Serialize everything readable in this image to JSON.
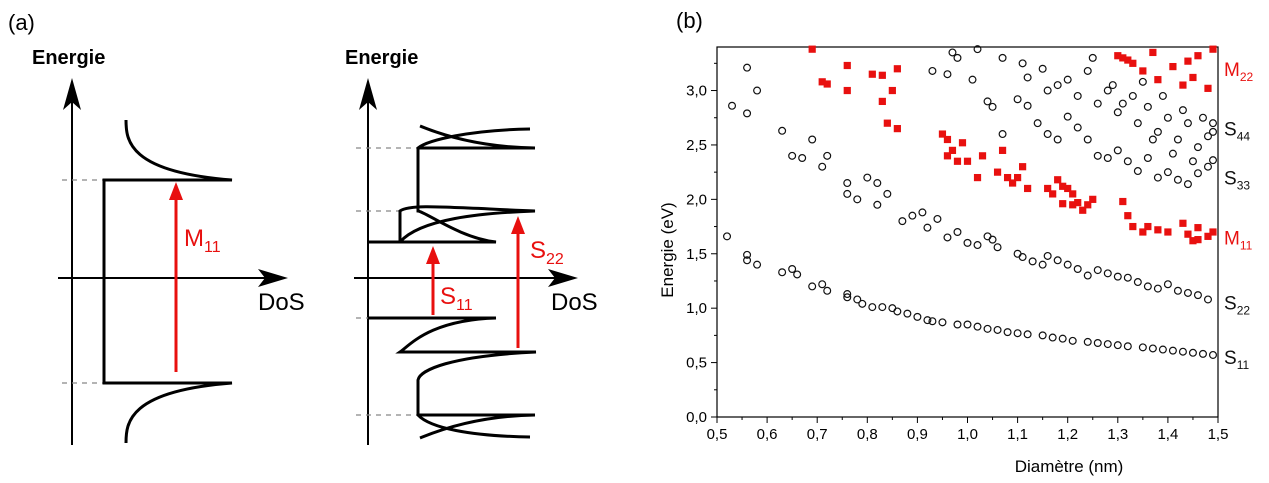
{
  "panel_a": {
    "label": "(a)",
    "metal": {
      "energy_axis_label": "Energie",
      "dos_axis_label": "DoS",
      "transition": {
        "main": "M",
        "sub": "11"
      }
    },
    "semiconductor": {
      "energy_axis_label": "Energie",
      "dos_axis_label": "DoS",
      "transitions": [
        {
          "main": "S",
          "sub": "11"
        },
        {
          "main": "S",
          "sub": "22"
        }
      ]
    }
  },
  "panel_b": {
    "label": "(b)"
  },
  "colors": {
    "transition": "#e8100f",
    "semiconducting": "#111111",
    "metallic": "#e8100f",
    "axis": "#000000"
  },
  "chart_data": {
    "type": "scatter",
    "title": "",
    "xlabel": "Diamètre (nm)",
    "ylabel": "Energie (eV)",
    "xlim": [
      0.5,
      1.5
    ],
    "ylim": [
      0.0,
      3.4
    ],
    "x_ticks": [
      "0,5",
      "0,6",
      "0,7",
      "0,8",
      "0,9",
      "1,0",
      "1,1",
      "1,2",
      "1,3",
      "1,4",
      "1,5"
    ],
    "y_ticks": [
      "0,0",
      "0,5",
      "1,0",
      "1,5",
      "2,0",
      "2,5",
      "3,0"
    ],
    "x_tick_values": [
      0.5,
      0.6,
      0.7,
      0.8,
      0.9,
      1.0,
      1.1,
      1.2,
      1.3,
      1.4,
      1.5
    ],
    "y_tick_values": [
      0,
      0.5,
      1.0,
      1.5,
      2.0,
      2.5,
      3.0
    ],
    "grid": false,
    "band_labels": [
      {
        "main": "M",
        "sub": "22",
        "y": 3.2,
        "color": "metallic"
      },
      {
        "main": "S",
        "sub": "44",
        "y": 2.65,
        "color": "semiconducting"
      },
      {
        "main": "S",
        "sub": "33",
        "y": 2.2,
        "color": "semiconducting"
      },
      {
        "main": "M",
        "sub": "11",
        "y": 1.65,
        "color": "metallic"
      },
      {
        "main": "S",
        "sub": "22",
        "y": 1.05,
        "color": "semiconducting"
      },
      {
        "main": "S",
        "sub": "11",
        "y": 0.55,
        "color": "semiconducting"
      }
    ],
    "series": [
      {
        "marker": "open-circle",
        "color": "semiconducting",
        "points": [
          [
            0.52,
            1.66
          ],
          [
            0.56,
            1.49
          ],
          [
            0.56,
            1.44
          ],
          [
            0.58,
            1.4
          ],
          [
            0.63,
            1.33
          ],
          [
            0.65,
            1.36
          ],
          [
            0.66,
            1.31
          ],
          [
            0.69,
            1.2
          ],
          [
            0.71,
            1.22
          ],
          [
            0.72,
            1.16
          ],
          [
            0.76,
            1.13
          ],
          [
            0.76,
            1.1
          ],
          [
            0.78,
            1.08
          ],
          [
            0.79,
            1.04
          ],
          [
            0.81,
            1.01
          ],
          [
            0.83,
            1.01
          ],
          [
            0.85,
            1.0
          ],
          [
            0.86,
            0.97
          ],
          [
            0.88,
            0.95
          ],
          [
            0.9,
            0.92
          ],
          [
            0.92,
            0.89
          ],
          [
            0.93,
            0.88
          ],
          [
            0.95,
            0.87
          ],
          [
            0.98,
            0.85
          ],
          [
            1.0,
            0.85
          ],
          [
            1.02,
            0.83
          ],
          [
            1.04,
            0.81
          ],
          [
            1.06,
            0.8
          ],
          [
            1.08,
            0.78
          ],
          [
            1.1,
            0.77
          ],
          [
            1.12,
            0.76
          ],
          [
            1.15,
            0.75
          ],
          [
            1.17,
            0.73
          ],
          [
            1.19,
            0.72
          ],
          [
            1.21,
            0.7
          ],
          [
            1.24,
            0.69
          ],
          [
            1.26,
            0.68
          ],
          [
            1.28,
            0.67
          ],
          [
            1.3,
            0.66
          ],
          [
            1.32,
            0.65
          ],
          [
            1.35,
            0.64
          ],
          [
            1.37,
            0.63
          ],
          [
            1.39,
            0.62
          ],
          [
            1.41,
            0.61
          ],
          [
            1.43,
            0.6
          ],
          [
            1.45,
            0.59
          ],
          [
            1.47,
            0.58
          ],
          [
            1.49,
            0.57
          ],
          [
            0.53,
            2.86
          ],
          [
            0.56,
            2.79
          ],
          [
            0.58,
            3.0
          ],
          [
            0.56,
            3.21
          ],
          [
            0.63,
            2.63
          ],
          [
            0.65,
            2.4
          ],
          [
            0.67,
            2.38
          ],
          [
            0.69,
            2.55
          ],
          [
            0.71,
            2.3
          ],
          [
            0.72,
            2.4
          ],
          [
            0.76,
            2.15
          ],
          [
            0.76,
            2.05
          ],
          [
            0.78,
            2.0
          ],
          [
            0.8,
            2.2
          ],
          [
            0.82,
            2.15
          ],
          [
            0.82,
            1.95
          ],
          [
            0.84,
            2.05
          ],
          [
            0.87,
            1.8
          ],
          [
            0.89,
            1.85
          ],
          [
            0.91,
            1.88
          ],
          [
            0.92,
            1.74
          ],
          [
            0.94,
            1.82
          ],
          [
            0.96,
            1.65
          ],
          [
            0.98,
            1.7
          ],
          [
            1.0,
            1.6
          ],
          [
            1.02,
            1.58
          ],
          [
            1.04,
            1.66
          ],
          [
            1.05,
            1.63
          ],
          [
            1.06,
            1.56
          ],
          [
            1.1,
            1.5
          ],
          [
            1.11,
            1.47
          ],
          [
            1.13,
            1.43
          ],
          [
            1.15,
            1.4
          ],
          [
            1.16,
            1.48
          ],
          [
            1.18,
            1.44
          ],
          [
            1.2,
            1.4
          ],
          [
            1.22,
            1.36
          ],
          [
            1.24,
            1.3
          ],
          [
            1.26,
            1.35
          ],
          [
            1.28,
            1.32
          ],
          [
            1.3,
            1.29
          ],
          [
            1.32,
            1.28
          ],
          [
            1.34,
            1.24
          ],
          [
            1.36,
            1.2
          ],
          [
            1.38,
            1.18
          ],
          [
            1.4,
            1.22
          ],
          [
            1.42,
            1.16
          ],
          [
            1.44,
            1.14
          ],
          [
            1.46,
            1.12
          ],
          [
            1.48,
            1.08
          ],
          [
            0.93,
            3.18
          ],
          [
            0.96,
            3.15
          ],
          [
            0.98,
            3.3
          ],
          [
            1.01,
            3.1
          ],
          [
            1.04,
            2.9
          ],
          [
            1.05,
            2.85
          ],
          [
            1.07,
            2.6
          ],
          [
            1.1,
            2.92
          ],
          [
            1.12,
            2.86
          ],
          [
            1.14,
            2.7
          ],
          [
            1.16,
            2.6
          ],
          [
            1.18,
            2.55
          ],
          [
            1.2,
            2.76
          ],
          [
            1.22,
            2.66
          ],
          [
            1.24,
            2.55
          ],
          [
            1.26,
            2.4
          ],
          [
            1.28,
            2.38
          ],
          [
            1.3,
            2.45
          ],
          [
            1.32,
            2.35
          ],
          [
            1.34,
            2.26
          ],
          [
            1.36,
            2.38
          ],
          [
            1.38,
            2.2
          ],
          [
            1.4,
            2.25
          ],
          [
            1.42,
            2.18
          ],
          [
            1.44,
            2.14
          ],
          [
            1.46,
            2.24
          ],
          [
            1.48,
            2.3
          ],
          [
            1.49,
            2.36
          ],
          [
            0.97,
            3.35
          ],
          [
            1.02,
            3.38
          ],
          [
            1.07,
            3.3
          ],
          [
            1.11,
            3.25
          ],
          [
            1.15,
            3.2
          ],
          [
            1.18,
            3.05
          ],
          [
            1.2,
            3.1
          ],
          [
            1.22,
            2.95
          ],
          [
            1.24,
            3.18
          ],
          [
            1.26,
            2.88
          ],
          [
            1.28,
            3.0
          ],
          [
            1.3,
            2.8
          ],
          [
            1.33,
            2.95
          ],
          [
            1.34,
            2.7
          ],
          [
            1.36,
            2.85
          ],
          [
            1.38,
            2.62
          ],
          [
            1.4,
            2.75
          ],
          [
            1.42,
            2.55
          ],
          [
            1.44,
            2.7
          ],
          [
            1.46,
            2.48
          ],
          [
            1.48,
            2.58
          ],
          [
            1.49,
            2.62
          ],
          [
            1.12,
            3.12
          ],
          [
            1.16,
            3.0
          ],
          [
            1.25,
            3.3
          ],
          [
            1.29,
            3.05
          ],
          [
            1.31,
            2.88
          ],
          [
            1.35,
            3.08
          ],
          [
            1.37,
            2.55
          ],
          [
            1.39,
            2.95
          ],
          [
            1.41,
            2.42
          ],
          [
            1.43,
            2.82
          ],
          [
            1.45,
            2.35
          ],
          [
            1.47,
            2.75
          ],
          [
            1.49,
            2.7
          ]
        ]
      },
      {
        "marker": "filled-square",
        "color": "metallic",
        "points": [
          [
            0.69,
            3.38
          ],
          [
            0.71,
            3.08
          ],
          [
            0.72,
            3.06
          ],
          [
            0.76,
            3.23
          ],
          [
            0.76,
            3.0
          ],
          [
            0.81,
            3.15
          ],
          [
            0.83,
            2.9
          ],
          [
            0.84,
            2.7
          ],
          [
            0.85,
            3.0
          ],
          [
            0.86,
            2.65
          ],
          [
            0.83,
            3.14
          ],
          [
            0.86,
            3.2
          ],
          [
            0.95,
            2.6
          ],
          [
            0.96,
            2.55
          ],
          [
            0.97,
            2.45
          ],
          [
            0.96,
            2.4
          ],
          [
            0.98,
            2.35
          ],
          [
            0.99,
            2.52
          ],
          [
            1.0,
            2.35
          ],
          [
            1.02,
            2.2
          ],
          [
            1.03,
            2.4
          ],
          [
            1.06,
            2.25
          ],
          [
            1.07,
            2.45
          ],
          [
            1.08,
            2.2
          ],
          [
            1.09,
            2.15
          ],
          [
            1.1,
            2.2
          ],
          [
            1.11,
            2.3
          ],
          [
            1.12,
            2.1
          ],
          [
            1.16,
            2.1
          ],
          [
            1.17,
            2.05
          ],
          [
            1.18,
            2.18
          ],
          [
            1.19,
            2.12
          ],
          [
            1.2,
            2.1
          ],
          [
            1.21,
            2.05
          ],
          [
            1.22,
            1.97
          ],
          [
            1.23,
            1.9
          ],
          [
            1.24,
            1.95
          ],
          [
            1.25,
            2.0
          ],
          [
            1.19,
            1.96
          ],
          [
            1.21,
            1.95
          ],
          [
            1.31,
            1.98
          ],
          [
            1.32,
            1.85
          ],
          [
            1.33,
            1.75
          ],
          [
            1.35,
            1.7
          ],
          [
            1.36,
            1.75
          ],
          [
            1.38,
            1.72
          ],
          [
            1.4,
            1.7
          ],
          [
            1.43,
            1.78
          ],
          [
            1.44,
            1.68
          ],
          [
            1.45,
            1.62
          ],
          [
            1.46,
            1.74
          ],
          [
            1.48,
            1.66
          ],
          [
            1.49,
            1.7
          ],
          [
            1.46,
            1.63
          ],
          [
            1.3,
            3.32
          ],
          [
            1.31,
            3.3
          ],
          [
            1.32,
            3.28
          ],
          [
            1.33,
            3.25
          ],
          [
            1.35,
            3.18
          ],
          [
            1.37,
            3.35
          ],
          [
            1.38,
            3.1
          ],
          [
            1.41,
            3.22
          ],
          [
            1.43,
            3.05
          ],
          [
            1.44,
            3.27
          ],
          [
            1.45,
            3.12
          ],
          [
            1.46,
            3.32
          ],
          [
            1.48,
            3.02
          ],
          [
            1.49,
            3.38
          ]
        ]
      }
    ]
  }
}
